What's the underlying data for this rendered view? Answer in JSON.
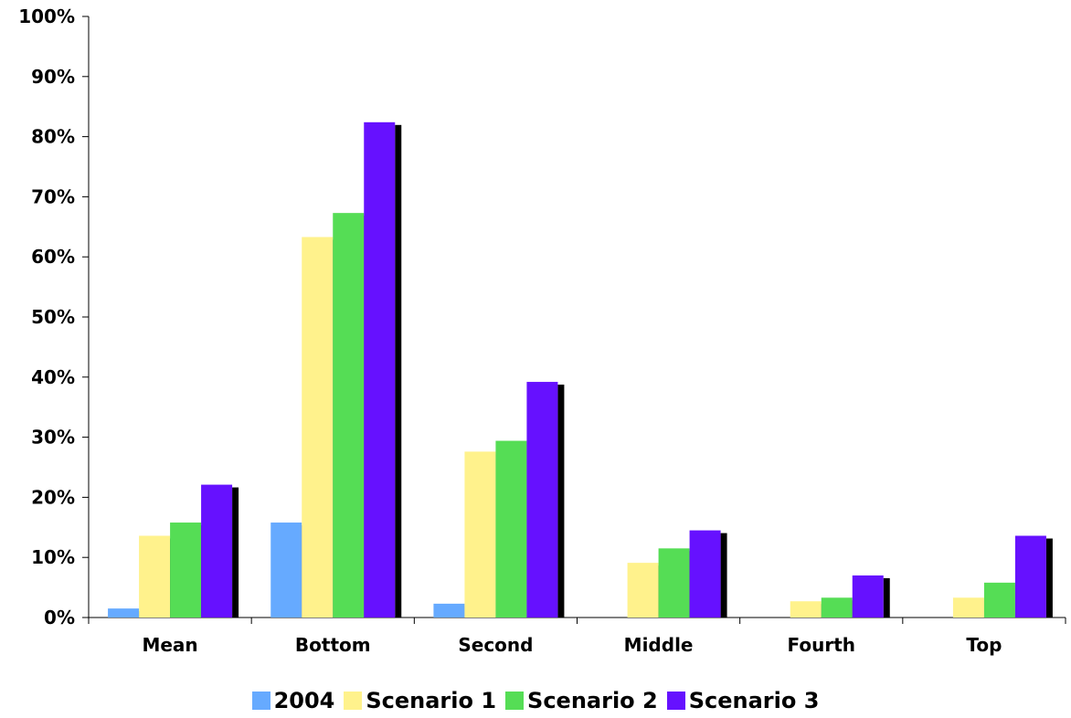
{
  "chart_data": {
    "type": "bar",
    "categories": [
      "Mean",
      "Bottom",
      "Second",
      "Middle",
      "Fourth",
      "Top"
    ],
    "series": [
      {
        "name": "2004",
        "color": "#66aaff",
        "values": [
          1.5,
          15.8,
          2.3,
          0,
          0,
          0
        ]
      },
      {
        "name": "Scenario 1",
        "color": "#fff28c",
        "values": [
          13.6,
          63.3,
          27.6,
          9.1,
          2.7,
          3.3
        ]
      },
      {
        "name": "Scenario 2",
        "color": "#55dd55",
        "values": [
          15.8,
          67.3,
          29.4,
          11.5,
          3.3,
          5.8
        ]
      },
      {
        "name": "Scenario 3",
        "color": "#6611ff",
        "values": [
          22.1,
          82.4,
          39.2,
          14.5,
          7.0,
          13.6
        ]
      }
    ],
    "ylim": [
      0,
      100
    ],
    "y_ticks": [
      "0%",
      "10%",
      "20%",
      "30%",
      "40%",
      "50%",
      "60%",
      "70%",
      "80%",
      "90%",
      "100%"
    ],
    "grid": false,
    "legend_position": "bottom",
    "title": "",
    "xlabel": "",
    "ylabel": ""
  }
}
